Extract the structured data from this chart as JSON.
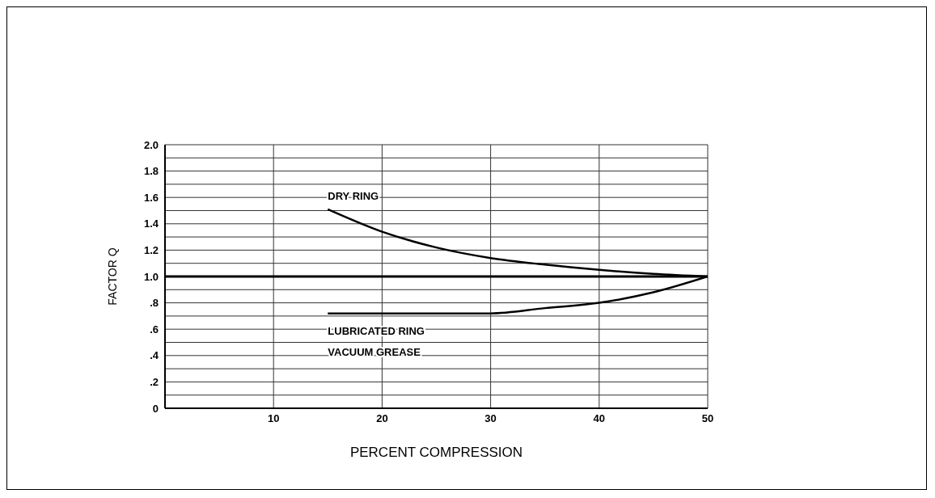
{
  "chart_data": {
    "type": "line",
    "xlabel": "PERCENT COMPRESSION",
    "ylabel": "FACTOR Q",
    "xlim": [
      0,
      50
    ],
    "xticks": [
      10,
      20,
      30,
      40,
      50
    ],
    "ylim": [
      0,
      2.0
    ],
    "yticks": [
      0,
      {
        "value": 0.1,
        "label": null
      },
      {
        "value": 0.2,
        "label": ".2"
      },
      {
        "value": 0.3,
        "label": null
      },
      {
        "value": 0.4,
        "label": ".4"
      },
      {
        "value": 0.5,
        "label": null
      },
      {
        "value": 0.6,
        "label": ".6"
      },
      {
        "value": 0.7,
        "label": null
      },
      {
        "value": 0.8,
        "label": ".8"
      },
      {
        "value": 0.9,
        "label": null
      },
      {
        "value": 1.0,
        "label": "1.0"
      },
      {
        "value": 1.1,
        "label": null
      },
      {
        "value": 1.2,
        "label": "1.2"
      },
      {
        "value": 1.3,
        "label": null
      },
      {
        "value": 1.4,
        "label": "1.4"
      },
      {
        "value": 1.5,
        "label": null
      },
      {
        "value": 1.6,
        "label": "1.6"
      },
      {
        "value": 1.7,
        "label": null
      },
      {
        "value": 1.8,
        "label": "1.8"
      },
      {
        "value": 1.9,
        "label": null
      },
      {
        "value": 2.0,
        "label": "2.0"
      }
    ],
    "grid": true,
    "marker": "none",
    "line_style": "solid",
    "ref_lines": [
      {
        "axis": "y",
        "value": 1.0,
        "color": "#000000"
      }
    ],
    "series": [
      {
        "name": "DRY RING",
        "color": "#000000",
        "x": [
          15,
          20,
          25,
          30,
          35,
          40,
          45,
          50
        ],
        "values": [
          1.51,
          1.34,
          1.22,
          1.14,
          1.09,
          1.05,
          1.02,
          1.0
        ]
      },
      {
        "name": "LUBRICATED RING",
        "color": "#000000",
        "x": [
          15,
          20,
          25,
          30,
          35,
          40,
          45,
          50
        ],
        "values": [
          0.72,
          0.72,
          0.72,
          0.72,
          0.76,
          0.8,
          0.88,
          1.0
        ]
      }
    ],
    "annotations": [
      "VACUUM GREASE"
    ]
  }
}
